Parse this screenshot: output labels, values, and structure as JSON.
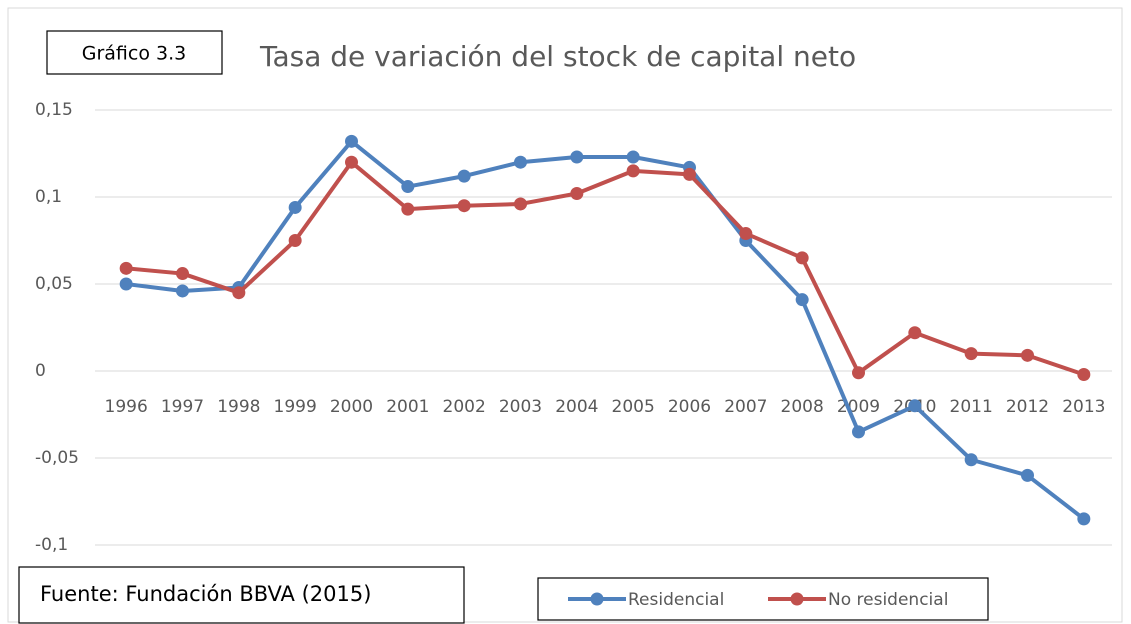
{
  "chart_data": {
    "type": "line",
    "label": "Gráfico 3.3",
    "title": "Tasa de variación del stock de capital neto",
    "source": "Fuente: Fundación BBVA (2015)",
    "categories": [
      "1996",
      "1997",
      "1998",
      "1999",
      "2000",
      "2001",
      "2002",
      "2003",
      "2004",
      "2005",
      "2006",
      "2007",
      "2008",
      "2009",
      "2010",
      "2011",
      "2012",
      "2013"
    ],
    "series": [
      {
        "name": "Residencial",
        "color": "#4f81bd",
        "values": [
          0.05,
          0.046,
          0.048,
          0.094,
          0.132,
          0.106,
          0.112,
          0.12,
          0.123,
          0.123,
          0.117,
          0.075,
          0.041,
          -0.035,
          -0.02,
          -0.051,
          -0.06,
          -0.085
        ]
      },
      {
        "name": "No residencial",
        "color": "#c0504d",
        "values": [
          0.059,
          0.056,
          0.045,
          0.075,
          0.12,
          0.093,
          0.095,
          0.096,
          0.102,
          0.115,
          0.113,
          0.079,
          0.065,
          -0.001,
          0.022,
          0.01,
          0.009,
          -0.002
        ]
      }
    ],
    "ylim": [
      -0.1,
      0.15
    ],
    "yticks": [
      {
        "value": -0.1,
        "label": "-0,1"
      },
      {
        "value": -0.05,
        "label": "-0,05"
      },
      0,
      {
        "value": 0.05,
        "label": "0,05"
      },
      {
        "value": 0.1,
        "label": "0,1"
      },
      {
        "value": 0.15,
        "label": "0,15"
      }
    ],
    "grid": true,
    "legend": "bottom"
  }
}
